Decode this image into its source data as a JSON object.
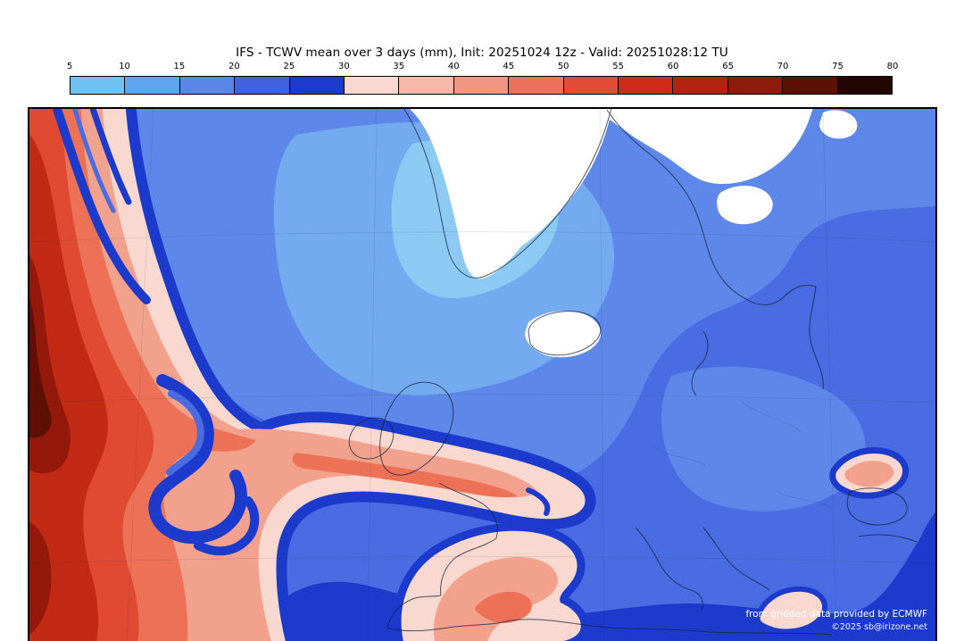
{
  "figure": {
    "title": "IFS - TCWV mean over 3 days (mm), Init: 20251024 12z - Valid: 20251028:12 TU"
  },
  "colorbar": {
    "unit": "mm",
    "tick_labels": [
      "5",
      "10",
      "15",
      "20",
      "25",
      "30",
      "35",
      "40",
      "45",
      "50",
      "55",
      "60",
      "65",
      "70",
      "75",
      "80"
    ],
    "segment_colors": [
      "#6ec1f1",
      "#5da6ed",
      "#5a86e8",
      "#4161de",
      "#1c3bcd",
      "#f9d9cf",
      "#f6b8a8",
      "#f29684",
      "#ec715a",
      "#e24b35",
      "#d02b18",
      "#b22312",
      "#8e1a0b",
      "#5e1005",
      "#230602"
    ],
    "range_min": 5,
    "range_max": 80
  },
  "map_colors": {
    "base_blue": "#4a6ce2",
    "dark_blue": "#1c3bcd",
    "light_blue": "#74aaf0",
    "no_data_white": "#ffffff",
    "high_value_red": "#c22a16"
  },
  "credits": {
    "line1": "from gridded data provided by ECMWF",
    "line2": "©2025 sb@irizone.net"
  }
}
